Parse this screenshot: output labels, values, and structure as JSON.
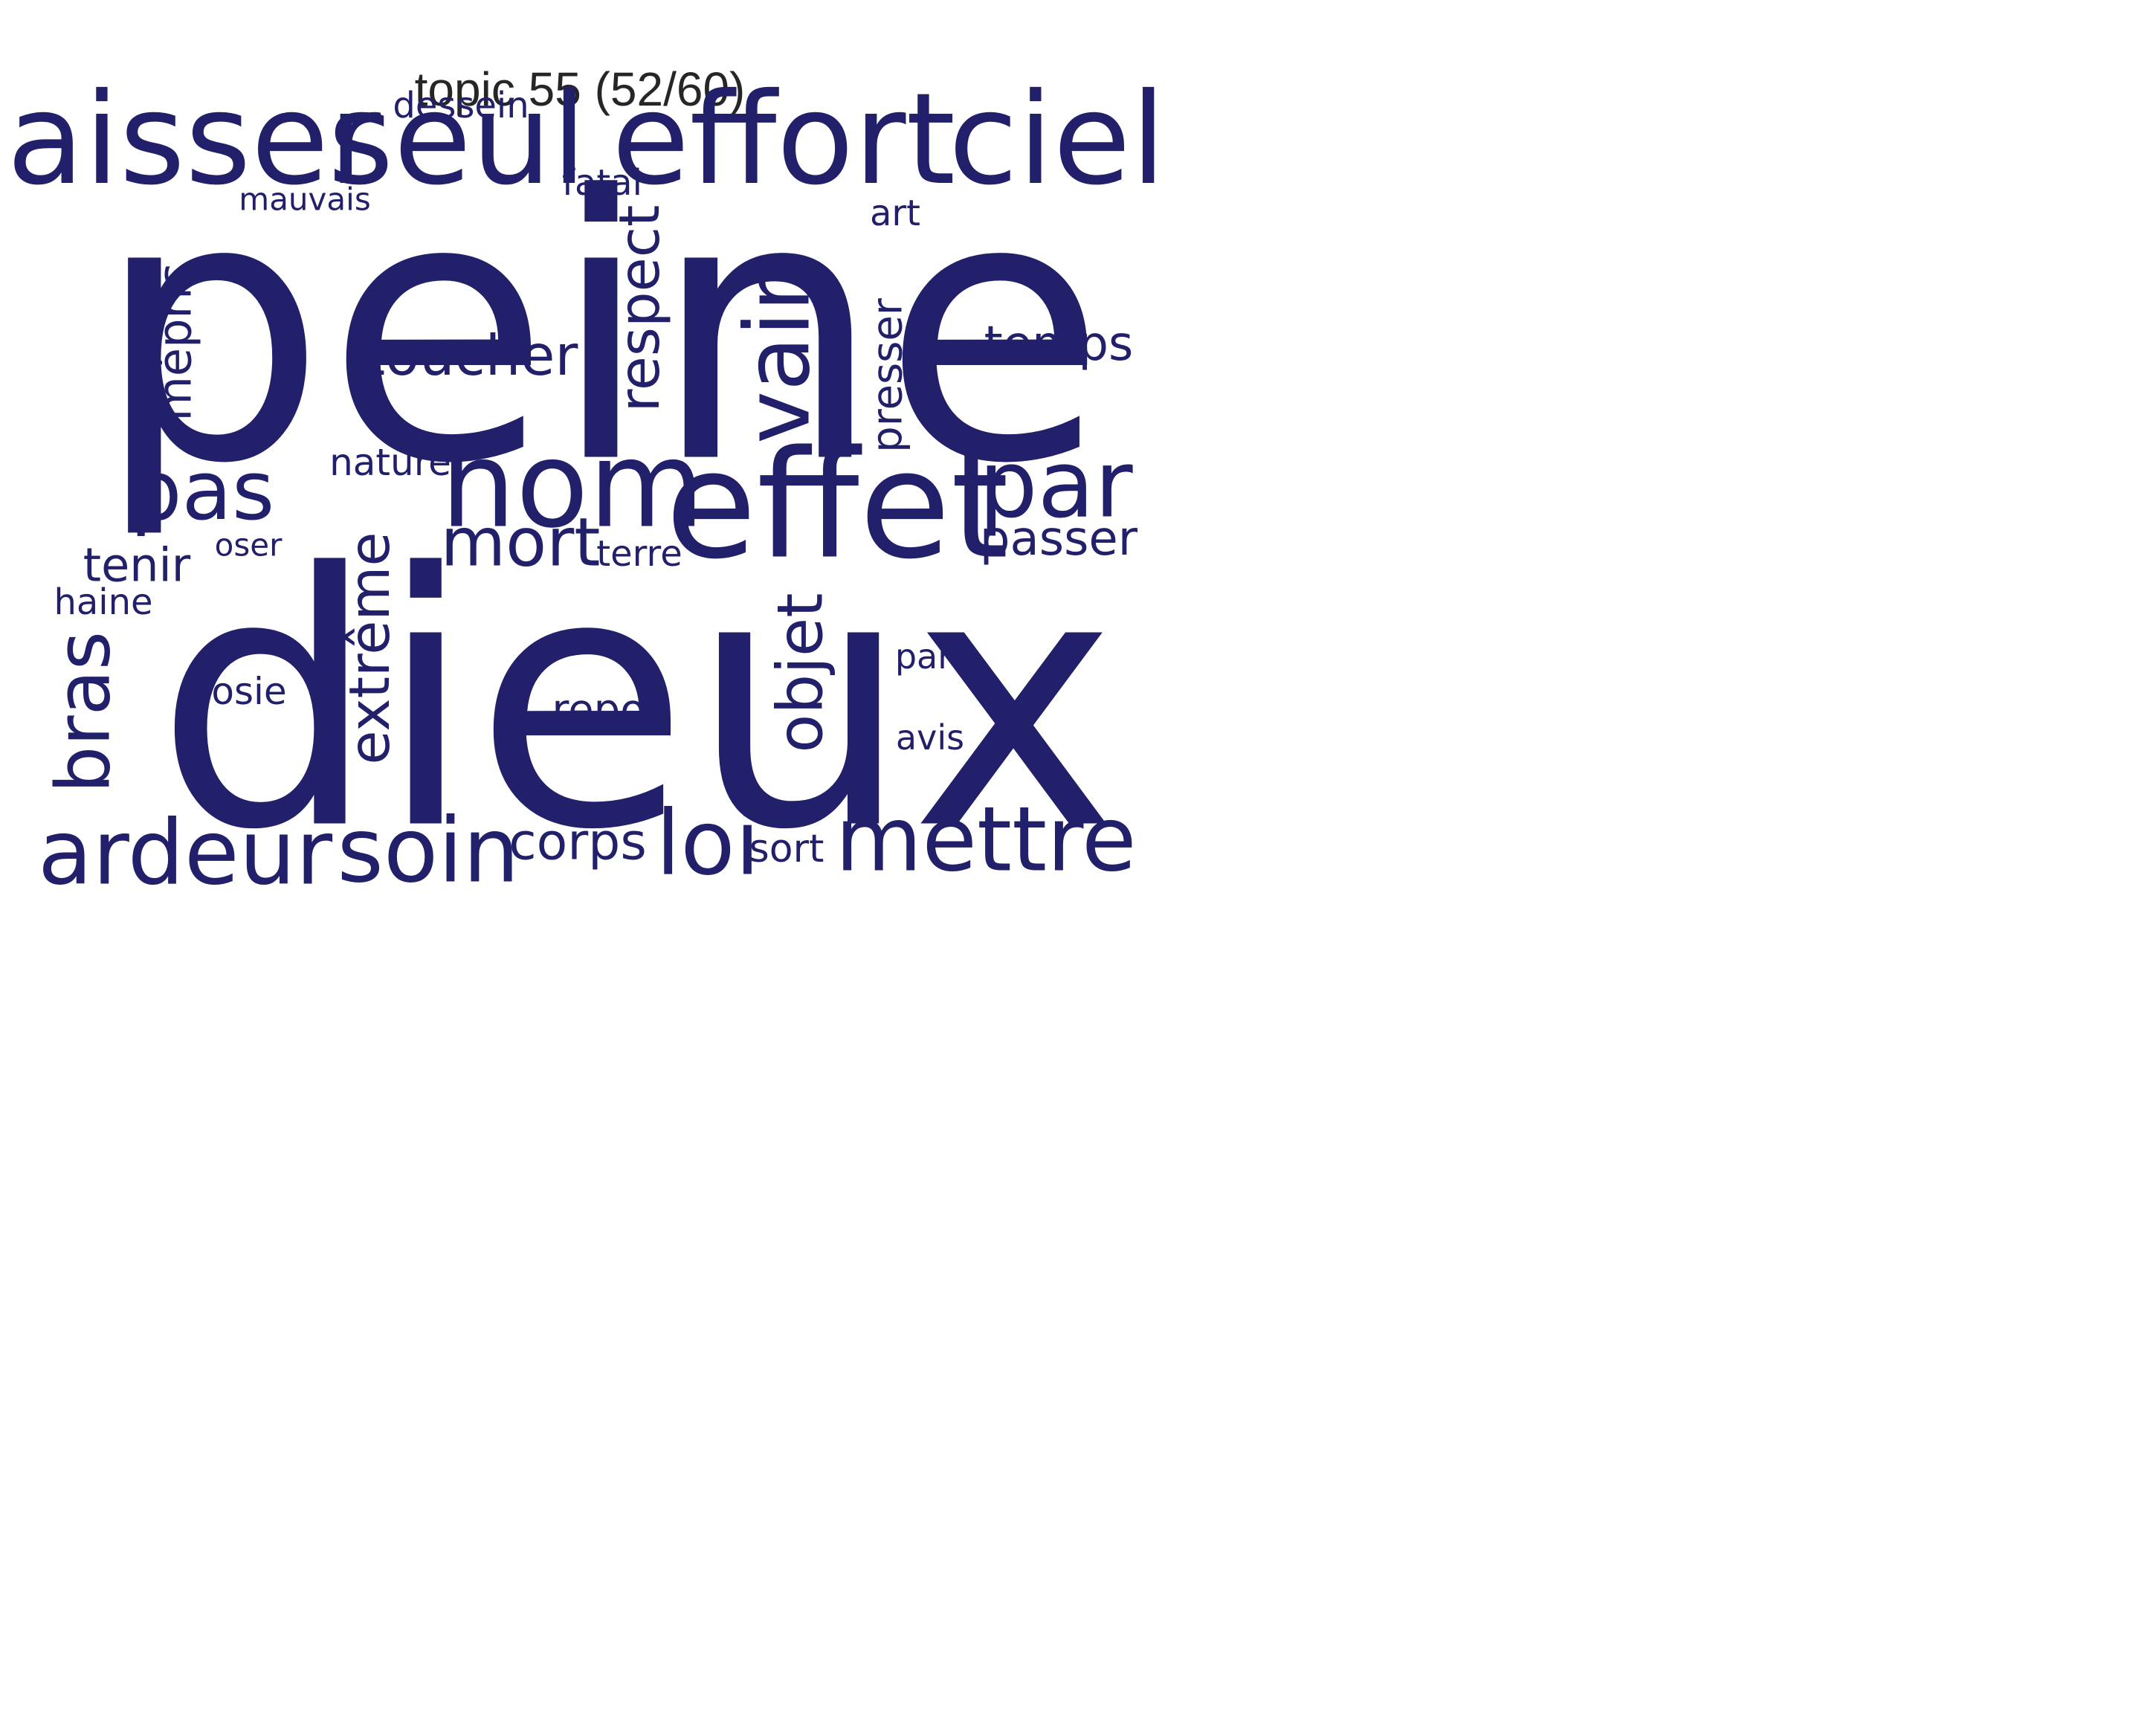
{
  "title": "topic 55 (52/60)",
  "color": "#22206a",
  "words": [
    {
      "text": "peine",
      "weight": 1.0,
      "orientation": "horizontal"
    },
    {
      "text": "dieux",
      "weight": 0.96,
      "orientation": "horizontal"
    },
    {
      "text": "effet",
      "weight": 0.44,
      "orientation": "horizontal"
    },
    {
      "text": "laisser",
      "weight": 0.4,
      "orientation": "horizontal"
    },
    {
      "text": "seul",
      "weight": 0.4,
      "orientation": "horizontal"
    },
    {
      "text": "effort",
      "weight": 0.4,
      "orientation": "horizontal"
    },
    {
      "text": "ciel",
      "weight": 0.4,
      "orientation": "horizontal"
    },
    {
      "text": "nom",
      "weight": 0.36,
      "orientation": "horizontal"
    },
    {
      "text": "par",
      "weight": 0.29,
      "orientation": "horizontal"
    },
    {
      "text": "vain",
      "weight": 0.27,
      "orientation": "vertical"
    },
    {
      "text": "mettre",
      "weight": 0.27,
      "orientation": "horizontal"
    },
    {
      "text": "ardeur",
      "weight": 0.27,
      "orientation": "horizontal"
    },
    {
      "text": "soin",
      "weight": 0.27,
      "orientation": "horizontal"
    },
    {
      "text": "loi",
      "weight": 0.27,
      "orientation": "horizontal"
    },
    {
      "text": "pas",
      "weight": 0.25,
      "orientation": "horizontal"
    },
    {
      "text": "bras",
      "weight": 0.23,
      "orientation": "vertical"
    },
    {
      "text": "mort",
      "weight": 0.2,
      "orientation": "horizontal"
    },
    {
      "text": "objet",
      "weight": 0.19,
      "orientation": "vertical"
    },
    {
      "text": "respect",
      "weight": 0.17,
      "orientation": "vertical"
    },
    {
      "text": "toucher",
      "weight": 0.17,
      "orientation": "horizontal"
    },
    {
      "text": "extrême",
      "weight": 0.17,
      "orientation": "vertical"
    },
    {
      "text": "corps",
      "weight": 0.16,
      "orientation": "horizontal"
    },
    {
      "text": "temps",
      "weight": 0.15,
      "orientation": "horizontal"
    },
    {
      "text": "passer",
      "weight": 0.15,
      "orientation": "horizontal"
    },
    {
      "text": "tenir",
      "weight": 0.14,
      "orientation": "horizontal"
    },
    {
      "text": "mépris",
      "weight": 0.14,
      "orientation": "vertical"
    },
    {
      "text": "presser",
      "weight": 0.13,
      "orientation": "vertical"
    },
    {
      "text": "repos",
      "weight": 0.13,
      "orientation": "horizontal"
    },
    {
      "text": "sort",
      "weight": 0.12,
      "orientation": "horizontal"
    },
    {
      "text": "nature",
      "weight": 0.12,
      "orientation": "horizontal"
    },
    {
      "text": "sosie",
      "weight": 0.12,
      "orientation": "horizontal"
    },
    {
      "text": "terre",
      "weight": 0.11,
      "orientation": "horizontal"
    },
    {
      "text": "haine",
      "weight": 0.11,
      "orientation": "horizontal"
    },
    {
      "text": "dessein",
      "weight": 0.11,
      "orientation": "horizontal"
    },
    {
      "text": "fatal",
      "weight": 0.11,
      "orientation": "horizontal"
    },
    {
      "text": "art",
      "weight": 0.11,
      "orientation": "horizontal"
    },
    {
      "text": "part",
      "weight": 0.11,
      "orientation": "horizontal"
    },
    {
      "text": "avis",
      "weight": 0.11,
      "orientation": "horizontal"
    },
    {
      "text": "mauvais",
      "weight": 0.1,
      "orientation": "horizontal"
    },
    {
      "text": "oser",
      "weight": 0.1,
      "orientation": "horizontal"
    }
  ]
}
